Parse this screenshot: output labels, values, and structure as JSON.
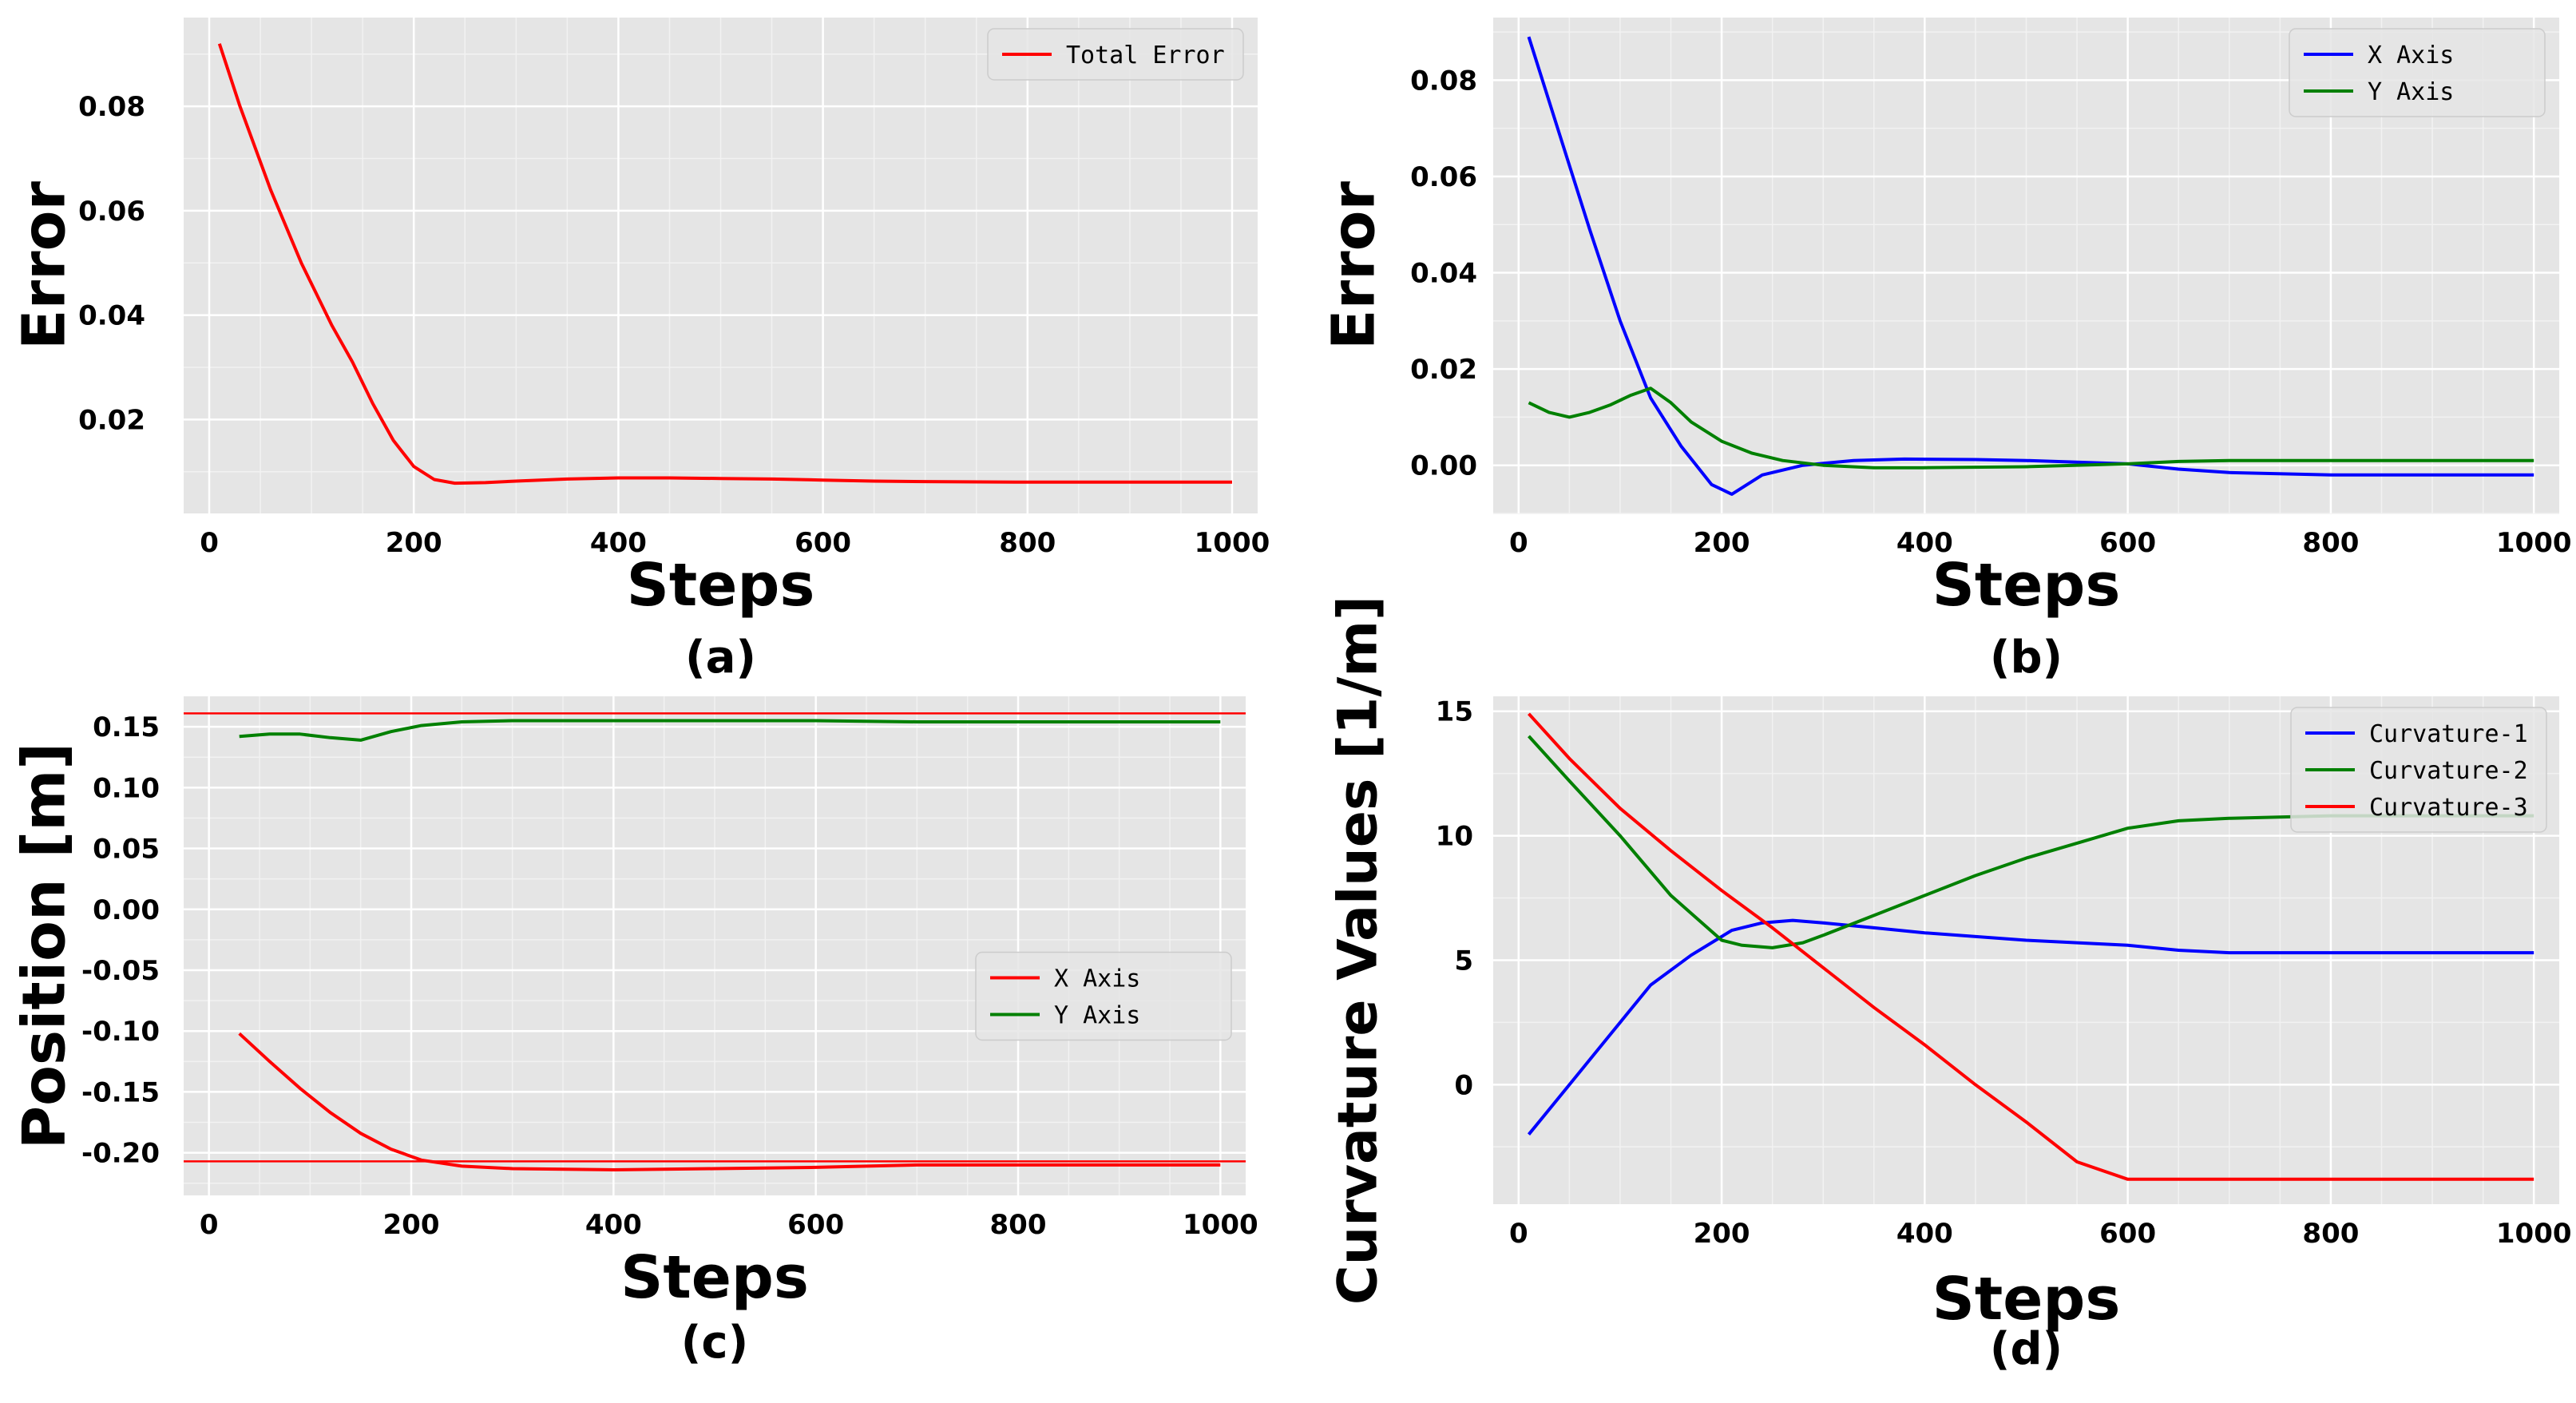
{
  "chart_data": [
    {
      "panel": "a",
      "type": "line",
      "caption": "(a)",
      "xlabel": "Steps",
      "ylabel": "Error",
      "xlim": [
        -25,
        1025
      ],
      "ylim": [
        0.002,
        0.097
      ],
      "xticks": [
        0,
        200,
        400,
        600,
        800,
        1000
      ],
      "xtick_labels": [
        "0",
        "200",
        "400",
        "600",
        "800",
        "1000"
      ],
      "yticks": [
        0.02,
        0.04,
        0.06,
        0.08
      ],
      "ytick_labels": [
        "0.02",
        "0.04",
        "0.06",
        "0.08"
      ],
      "grid": true,
      "legend_position": "upper-right",
      "series": [
        {
          "name": "Total Error",
          "color": "#ff0000",
          "x": [
            10,
            30,
            60,
            90,
            120,
            140,
            160,
            180,
            200,
            220,
            240,
            270,
            300,
            350,
            400,
            450,
            500,
            550,
            600,
            650,
            700,
            800,
            900,
            1000
          ],
          "y": [
            0.092,
            0.08,
            0.064,
            0.05,
            0.038,
            0.031,
            0.023,
            0.016,
            0.011,
            0.0085,
            0.0078,
            0.0079,
            0.0082,
            0.0086,
            0.0088,
            0.0088,
            0.0087,
            0.0086,
            0.0084,
            0.0082,
            0.0081,
            0.008,
            0.008,
            0.008
          ]
        }
      ]
    },
    {
      "panel": "b",
      "type": "line",
      "caption": "(b)",
      "xlabel": "Steps",
      "ylabel": "Error",
      "xlim": [
        -25,
        1025
      ],
      "ylim": [
        -0.01,
        0.093
      ],
      "xticks": [
        0,
        200,
        400,
        600,
        800,
        1000
      ],
      "xtick_labels": [
        "0",
        "200",
        "400",
        "600",
        "800",
        "1000"
      ],
      "yticks": [
        0.0,
        0.02,
        0.04,
        0.06,
        0.08
      ],
      "ytick_labels": [
        "0.00",
        "0.02",
        "0.04",
        "0.06",
        "0.08"
      ],
      "grid": true,
      "legend_position": "upper-right",
      "series": [
        {
          "name": "X Axis",
          "color": "#0000ff",
          "x": [
            10,
            40,
            70,
            100,
            130,
            160,
            190,
            210,
            240,
            280,
            330,
            380,
            450,
            500,
            600,
            650,
            700,
            800,
            900,
            1000
          ],
          "y": [
            0.089,
            0.069,
            0.049,
            0.03,
            0.014,
            0.004,
            -0.004,
            -0.006,
            -0.002,
            0.0,
            0.001,
            0.0013,
            0.0012,
            0.001,
            0.0003,
            -0.0008,
            -0.0015,
            -0.002,
            -0.002,
            -0.002
          ]
        },
        {
          "name": "Y Axis",
          "color": "#008000",
          "x": [
            10,
            30,
            50,
            70,
            90,
            110,
            130,
            150,
            170,
            200,
            230,
            260,
            300,
            350,
            400,
            500,
            600,
            650,
            700,
            800,
            900,
            1000
          ],
          "y": [
            0.013,
            0.011,
            0.01,
            0.011,
            0.0125,
            0.0145,
            0.016,
            0.013,
            0.009,
            0.005,
            0.0025,
            0.001,
            0.0,
            -0.0005,
            -0.0005,
            -0.0003,
            0.0003,
            0.0008,
            0.001,
            0.001,
            0.001,
            0.001
          ]
        }
      ]
    },
    {
      "panel": "c",
      "type": "line",
      "caption": "(c)",
      "xlabel": "Steps",
      "ylabel": "Position [m]",
      "xlim": [
        -25,
        1025
      ],
      "ylim": [
        -0.235,
        0.175
      ],
      "xticks": [
        0,
        200,
        400,
        600,
        800,
        1000
      ],
      "xtick_labels": [
        "0",
        "200",
        "400",
        "600",
        "800",
        "1000"
      ],
      "yticks": [
        -0.2,
        -0.15,
        -0.1,
        -0.05,
        0.0,
        0.05,
        0.1,
        0.15
      ],
      "ytick_labels": [
        "-0.20",
        "-0.15",
        "-0.10",
        "-0.05",
        "0.00",
        "0.05",
        "0.10",
        "0.15"
      ],
      "grid": true,
      "legend_position": "center-right",
      "reference_lines": [
        {
          "y": 0.161,
          "color": "#ff0000"
        },
        {
          "y": -0.207,
          "color": "#ff0000"
        }
      ],
      "series": [
        {
          "name": "X Axis",
          "color": "#ff0000",
          "x": [
            30,
            60,
            90,
            120,
            150,
            180,
            210,
            250,
            300,
            400,
            500,
            600,
            700,
            800,
            900,
            1000
          ],
          "y": [
            -0.102,
            -0.125,
            -0.147,
            -0.167,
            -0.184,
            -0.197,
            -0.206,
            -0.211,
            -0.213,
            -0.214,
            -0.213,
            -0.212,
            -0.21,
            -0.21,
            -0.21,
            -0.21
          ],
          "show_in_legend": true
        },
        {
          "name": "Y Axis",
          "color": "#008000",
          "x": [
            30,
            60,
            90,
            120,
            150,
            180,
            210,
            250,
            300,
            400,
            500,
            600,
            700,
            800,
            900,
            1000
          ],
          "y": [
            0.142,
            0.144,
            0.144,
            0.141,
            0.139,
            0.146,
            0.151,
            0.154,
            0.155,
            0.155,
            0.155,
            0.155,
            0.154,
            0.154,
            0.154,
            0.154
          ]
        }
      ]
    },
    {
      "panel": "d",
      "type": "line",
      "caption": "(d)",
      "xlabel": "Steps",
      "ylabel": "Curvature Values [1/m]",
      "xlim": [
        -25,
        1025
      ],
      "ylim": [
        -4.8,
        15.6
      ],
      "xticks": [
        0,
        200,
        400,
        600,
        800,
        1000
      ],
      "xtick_labels": [
        "0",
        "200",
        "400",
        "600",
        "800",
        "1000"
      ],
      "yticks": [
        0,
        5,
        10,
        15
      ],
      "ytick_labels": [
        "0",
        "5",
        "10",
        "15"
      ],
      "grid": true,
      "legend_position": "upper-right",
      "series": [
        {
          "name": "Curvature-1",
          "color": "#0000ff",
          "x": [
            10,
            50,
            90,
            130,
            170,
            210,
            240,
            270,
            300,
            350,
            400,
            500,
            600,
            650,
            700,
            800,
            900,
            1000
          ],
          "y": [
            -2.0,
            0.0,
            2.0,
            4.0,
            5.2,
            6.2,
            6.5,
            6.6,
            6.5,
            6.3,
            6.1,
            5.8,
            5.6,
            5.4,
            5.3,
            5.3,
            5.3,
            5.3
          ]
        },
        {
          "name": "Curvature-2",
          "color": "#008000",
          "x": [
            10,
            50,
            100,
            150,
            200,
            220,
            250,
            280,
            300,
            350,
            400,
            450,
            500,
            550,
            600,
            650,
            700,
            800,
            900,
            1000
          ],
          "y": [
            14.0,
            12.2,
            10.0,
            7.6,
            5.8,
            5.6,
            5.5,
            5.7,
            6.0,
            6.8,
            7.6,
            8.4,
            9.1,
            9.7,
            10.3,
            10.6,
            10.7,
            10.8,
            10.8,
            10.8
          ]
        },
        {
          "name": "Curvature-3",
          "color": "#ff0000",
          "x": [
            10,
            50,
            100,
            150,
            200,
            250,
            300,
            350,
            400,
            450,
            500,
            550,
            600,
            650,
            700,
            800,
            900,
            1000
          ],
          "y": [
            14.9,
            13.1,
            11.1,
            9.4,
            7.8,
            6.3,
            4.7,
            3.1,
            1.6,
            0.0,
            -1.5,
            -3.1,
            -3.8,
            -3.8,
            -3.8,
            -3.8,
            -3.8,
            -3.8
          ]
        }
      ]
    }
  ]
}
